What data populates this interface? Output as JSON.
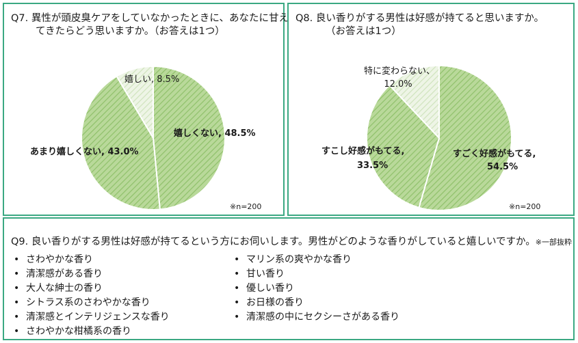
{
  "q7": {
    "title_line1": "Q7. 異性が頭皮臭ケアをしていなかったときに、あなたに甘え",
    "title_line2": "てきたらどう思いますか。（お答えは1つ）",
    "note": "※n=200"
  },
  "q8": {
    "title_line1": "Q8. 良い香りがする男性は好感が持てると思いますか。",
    "title_line2": "（お答えは1つ）",
    "note": "※n=200"
  },
  "q9": {
    "title": "Q9. 良い香りがする男性は好感が持てるという方にお伺いします。男性がどのような香りがしていると嬉しいですか。",
    "title_note": "※一部抜粋",
    "bullet": "•",
    "left_items": [
      "さわやかな香り",
      "清潔感がある香り",
      "大人な紳士の香り",
      "シトラス系のさわやかな香り",
      "清潔感とインテリジェンスな香り",
      "さわやかな柑橘系の香り"
    ],
    "right_items": [
      "マリン系の爽やかな香り",
      "甘い香り",
      "優しい香り",
      "お日様の香り",
      "清潔感の中にセクシーさがある香り"
    ]
  },
  "colors": {
    "border": "#3aa882",
    "slice_fill": "#b9d99a",
    "slice_stripe": "#8fc06a",
    "light_fill": "#eef5e6",
    "light_stripe": "#cfe3bd"
  },
  "chart_data": [
    {
      "type": "pie",
      "slices": [
        {
          "label": "嬉しくない",
          "value": 48.5,
          "value_text": "48.5%"
        },
        {
          "label": "あまり嬉しくない",
          "value": 43.0,
          "value_text": "43.0%"
        },
        {
          "label": "嬉しい",
          "value": 8.5,
          "value_text": "8.5%"
        }
      ]
    },
    {
      "type": "pie",
      "slices": [
        {
          "label": "すごく好感がもてる",
          "value": 54.5,
          "value_text": "54.5%"
        },
        {
          "label": "すこし好感がもてる",
          "value": 33.5,
          "value_text": "33.5%"
        },
        {
          "label": "特に変わらない",
          "value": 12.0,
          "value_text": "12.0%"
        }
      ]
    }
  ]
}
